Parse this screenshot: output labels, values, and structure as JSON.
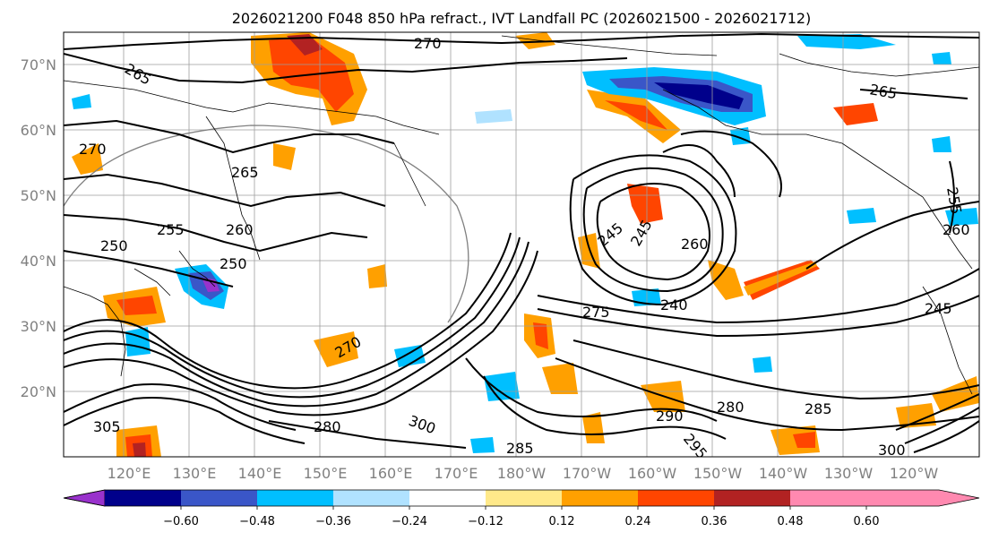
{
  "title": "2026021200 F048 850 hPa refract., IVT Landfall PC (2026021500 - 2026021712)",
  "lat_labels": [
    "70°N",
    "60°N",
    "50°N",
    "40°N",
    "30°N",
    "20°N"
  ],
  "lon_labels": [
    "120°E",
    "130°E",
    "140°E",
    "150°E",
    "160°E",
    "170°E",
    "180°W",
    "170°W",
    "160°W",
    "150°W",
    "140°W",
    "130°W",
    "120°W"
  ],
  "colorbar": {
    "colors": [
      "#9932cc",
      "#00008b",
      "#3a56c8",
      "#00bfff",
      "#b0e2ff",
      "#ffffff",
      "#ffe98a",
      "#ffa000",
      "#ff4500",
      "#b22222",
      "#ff89b0"
    ],
    "tick_labels": [
      "−0.60",
      "−0.48",
      "−0.36",
      "−0.24",
      "−0.12",
      "0.12",
      "0.24",
      "0.36",
      "0.48",
      "0.60"
    ]
  },
  "contour_labels": [
    "270",
    "265",
    "270",
    "265",
    "260",
    "255",
    "250",
    "245",
    "245",
    "260",
    "240",
    "275",
    "270",
    "280",
    "300",
    "290",
    "295",
    "280",
    "285",
    "285",
    "305",
    "300",
    "265",
    "260",
    "255",
    "245",
    "250"
  ]
}
